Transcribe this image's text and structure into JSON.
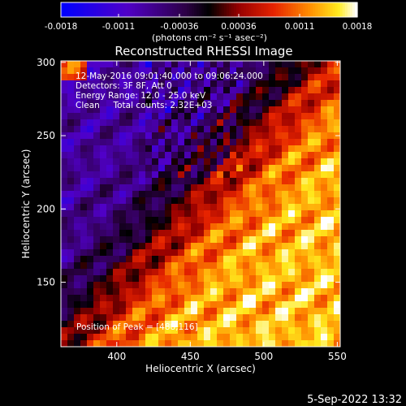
{
  "chart_data": {
    "type": "heatmap",
    "title": "Reconstructed RHESSI Image",
    "xlabel": "Heliocentric X (arcsec)",
    "ylabel": "Heliocentric Y (arcsec)",
    "xlim": [
      362,
      552
    ],
    "ylim": [
      106,
      301
    ],
    "x_ticks": [
      400,
      450,
      500,
      550
    ],
    "y_ticks": [
      150,
      200,
      250,
      300
    ],
    "colorbar": {
      "min": -0.0018,
      "max": 0.0018,
      "ticks": [
        "-0.0018",
        "-0.0011",
        "-0.00036",
        "0.00036",
        "0.0011",
        "0.0018"
      ],
      "tick_values": [
        -0.0018,
        -0.0011,
        -0.00036,
        0.00036,
        0.0011,
        0.0018
      ],
      "unit_label": "(photons cm⁻² s⁻¹ asec⁻²)"
    },
    "annotations": [
      "12-May-2016 09:01:40.000 to 09:06:24.000",
      "Detectors: 3F 8F, Att 0",
      "Energy Range: 12.0 - 25.0 keV",
      "Clean     Total counts: 2.32E+03"
    ],
    "peak_label": "Position of Peak = [488,116]",
    "peak_position": [
      488,
      116
    ],
    "timestamp": "5-Sep-2022 13:32"
  }
}
